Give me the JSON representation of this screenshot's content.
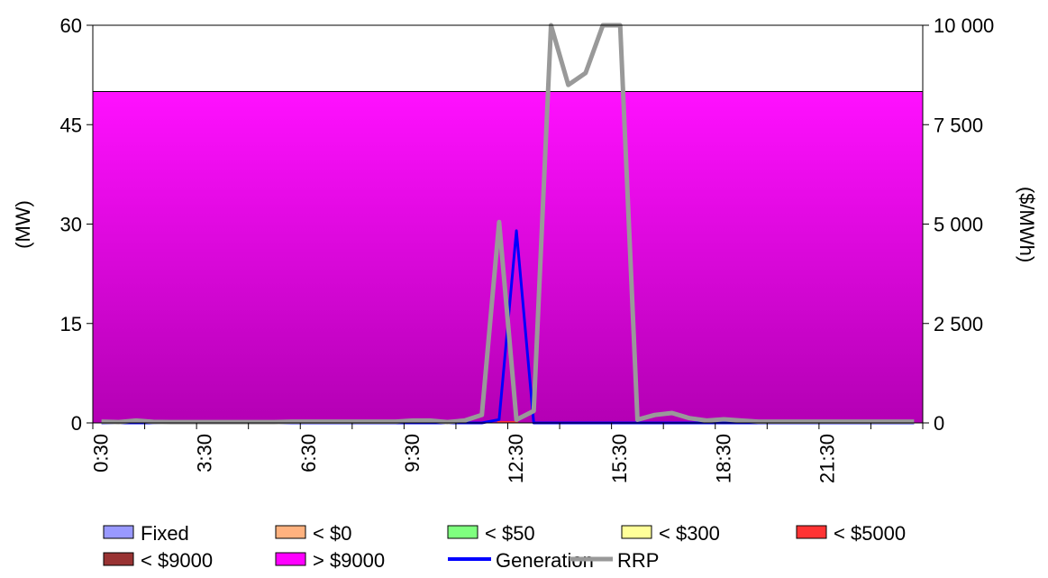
{
  "chart_data": {
    "type": "area",
    "y_left_label": "(MW)",
    "y_right_label": "($/MWh)",
    "y_left_ticks": [
      "0",
      "15",
      "30",
      "45",
      "60"
    ],
    "y_left_range": [
      0,
      60
    ],
    "y_right_ticks": [
      "0",
      "2 500",
      "5 000",
      "7 500",
      "10 000"
    ],
    "y_right_range": [
      0,
      10000
    ],
    "x_tick_labels": [
      "0:30",
      "3:30",
      "6:30",
      "9:30",
      "12:30",
      "15:30",
      "18:30",
      "21:30"
    ],
    "x_label_indices": [
      0,
      6,
      12,
      18,
      24,
      30,
      36,
      42
    ],
    "num_intervals": 48,
    "grid": false,
    "legend_position": "bottom",
    "colors": {
      "fixed": "#9999ff",
      "lt0": "#ffb27f",
      "lt50": "#7fff7f",
      "lt300": "#ffff99",
      "lt5000": "#ff3333",
      "lt9000": "#993333",
      "gt9000": "#ff00ff",
      "generation": "#0000ff",
      "rrp": "#999999"
    },
    "legend": [
      {
        "key": "fixed",
        "label": "Fixed",
        "kind": "box"
      },
      {
        "key": "lt0",
        "label": "< $0",
        "kind": "box"
      },
      {
        "key": "lt50",
        "label": "< $50",
        "kind": "box"
      },
      {
        "key": "lt300",
        "label": "< $300",
        "kind": "box"
      },
      {
        "key": "lt5000",
        "label": "< $5000",
        "kind": "box"
      },
      {
        "key": "lt9000",
        "label": "< $9000",
        "kind": "box"
      },
      {
        "key": "gt9000",
        "label": "> $9000",
        "kind": "box"
      },
      {
        "key": "generation",
        "label": "Generation",
        "kind": "line"
      },
      {
        "key": "rrp",
        "label": "RRP",
        "kind": "line"
      }
    ],
    "series": [
      {
        "name": "> $9000",
        "key": "gt9000",
        "axis": "left",
        "values": [
          50,
          50,
          50,
          50,
          50,
          50,
          50,
          50,
          50,
          50,
          50,
          50,
          50,
          50,
          50,
          50,
          50,
          50,
          50,
          50,
          50,
          50,
          50,
          50,
          50,
          50,
          50,
          50,
          50,
          50,
          50,
          50,
          50,
          50,
          50,
          50,
          50,
          50,
          50,
          50,
          50,
          50,
          50,
          50,
          50,
          50,
          50,
          50
        ]
      },
      {
        "name": "Generation",
        "key": "generation",
        "axis": "left",
        "values": [
          0,
          0,
          0,
          0,
          0,
          0,
          0,
          0,
          0,
          0,
          0,
          0,
          0,
          0,
          0,
          0,
          0,
          0,
          0,
          0,
          0,
          0,
          0,
          0.5,
          29,
          0,
          0,
          0,
          0,
          0,
          0,
          0,
          0,
          0,
          0,
          0,
          0,
          0,
          0,
          0,
          0,
          0,
          0,
          0,
          0,
          0,
          0,
          0
        ]
      },
      {
        "name": "RRP",
        "key": "rrp",
        "axis": "right",
        "values": [
          30,
          20,
          60,
          25,
          20,
          20,
          20,
          20,
          20,
          20,
          20,
          30,
          30,
          30,
          30,
          30,
          30,
          30,
          60,
          60,
          20,
          60,
          200,
          5050,
          80,
          300,
          10000,
          8500,
          8800,
          10000,
          10000,
          80,
          200,
          250,
          120,
          60,
          90,
          60,
          30,
          30,
          30,
          30,
          30,
          30,
          30,
          30,
          30,
          30
        ]
      }
    ]
  }
}
